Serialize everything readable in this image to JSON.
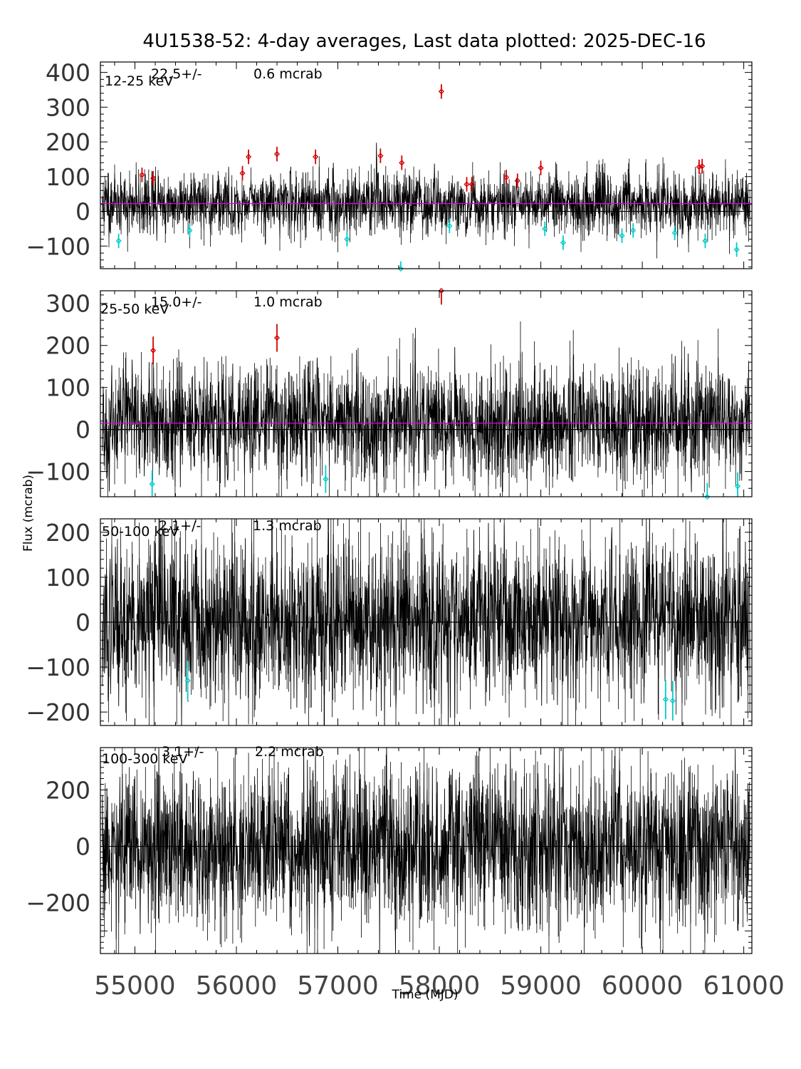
{
  "chart_data": {
    "type": "scatter",
    "title": "4U1538-52:  4-day averages,  Last data plotted: 2025-DEC-16",
    "xlabel": "Time (MJD)",
    "ylabel": "Flux (mcrab)",
    "xlim": [
      54660,
      61080
    ],
    "xticks": [
      "55000",
      "56000",
      "57000",
      "58000",
      "59000",
      "60000",
      "61000"
    ],
    "xtick_values": [
      55000,
      56000,
      57000,
      58000,
      59000,
      60000,
      61000
    ],
    "colors": {
      "data": "#000000",
      "high_outlier": "#d40000",
      "low_outlier": "#00cccc",
      "mean_line": "#e000e0",
      "axis": "#000000"
    },
    "panels": [
      {
        "band": "12-25 keV",
        "mean_text": "22.5+/-",
        "err_text": "0.6 mcrab",
        "mean": 22.5,
        "noise": 38,
        "seed": 11,
        "ylim": [
          -165,
          430
        ],
        "yticks": [
          "400",
          "300",
          "200",
          "100",
          "0",
          "−100"
        ],
        "ytick_values": [
          400,
          300,
          200,
          100,
          0,
          -100
        ],
        "high_points": [
          [
            55070,
            105
          ],
          [
            55180,
            95
          ],
          [
            56060,
            110
          ],
          [
            56120,
            157
          ],
          [
            56400,
            165
          ],
          [
            56780,
            157
          ],
          [
            57420,
            160
          ],
          [
            57630,
            140
          ],
          [
            58020,
            345
          ],
          [
            58270,
            78
          ],
          [
            58320,
            78
          ],
          [
            58660,
            98
          ],
          [
            58770,
            88
          ],
          [
            59000,
            125
          ],
          [
            60560,
            128
          ],
          [
            60590,
            130
          ]
        ],
        "low_points": [
          [
            54840,
            -85
          ],
          [
            55540,
            -55
          ],
          [
            57090,
            -80
          ],
          [
            57620,
            -165
          ],
          [
            58100,
            -42
          ],
          [
            59040,
            -50
          ],
          [
            59220,
            -90
          ],
          [
            59800,
            -70
          ],
          [
            59910,
            -55
          ],
          [
            60320,
            -62
          ],
          [
            60620,
            -85
          ],
          [
            60930,
            -110
          ]
        ]
      },
      {
        "band": "25-50 keV",
        "mean_text": "15.0+/-",
        "err_text": "1.0 mcrab",
        "mean": 15.0,
        "noise": 60,
        "seed": 23,
        "ylim": [
          -160,
          330
        ],
        "yticks": [
          "300",
          "200",
          "100",
          "0",
          "−100"
        ],
        "ytick_values": [
          300,
          200,
          100,
          0,
          -100
        ],
        "high_points": [
          [
            55180,
            188
          ],
          [
            56400,
            218
          ],
          [
            58020,
            330
          ]
        ],
        "low_points": [
          [
            55170,
            -130
          ],
          [
            56880,
            -118
          ],
          [
            60640,
            -160
          ],
          [
            60940,
            -135
          ]
        ]
      },
      {
        "band": "50-100 keV",
        "mean_text": "2.1+/-",
        "err_text": "1.3 mcrab",
        "mean": 2.1,
        "noise": 80,
        "seed": 37,
        "ylim": [
          -230,
          230
        ],
        "yticks": [
          "200",
          "100",
          "0",
          "−100",
          "−200"
        ],
        "ytick_values": [
          200,
          100,
          0,
          -100,
          -200
        ],
        "high_points": [],
        "low_points": [
          [
            55520,
            -130
          ],
          [
            60230,
            -172
          ],
          [
            60300,
            -175
          ]
        ]
      },
      {
        "band": "100-300 keV",
        "mean_text": "3.1+/-",
        "err_text": "2.2 mcrab",
        "mean": 3.1,
        "noise": 125,
        "seed": 53,
        "ylim": [
          -380,
          350
        ],
        "yticks": [
          "200",
          "0",
          "−200"
        ],
        "ytick_values": [
          200,
          0,
          -200
        ],
        "high_points": [],
        "low_points": []
      }
    ]
  }
}
